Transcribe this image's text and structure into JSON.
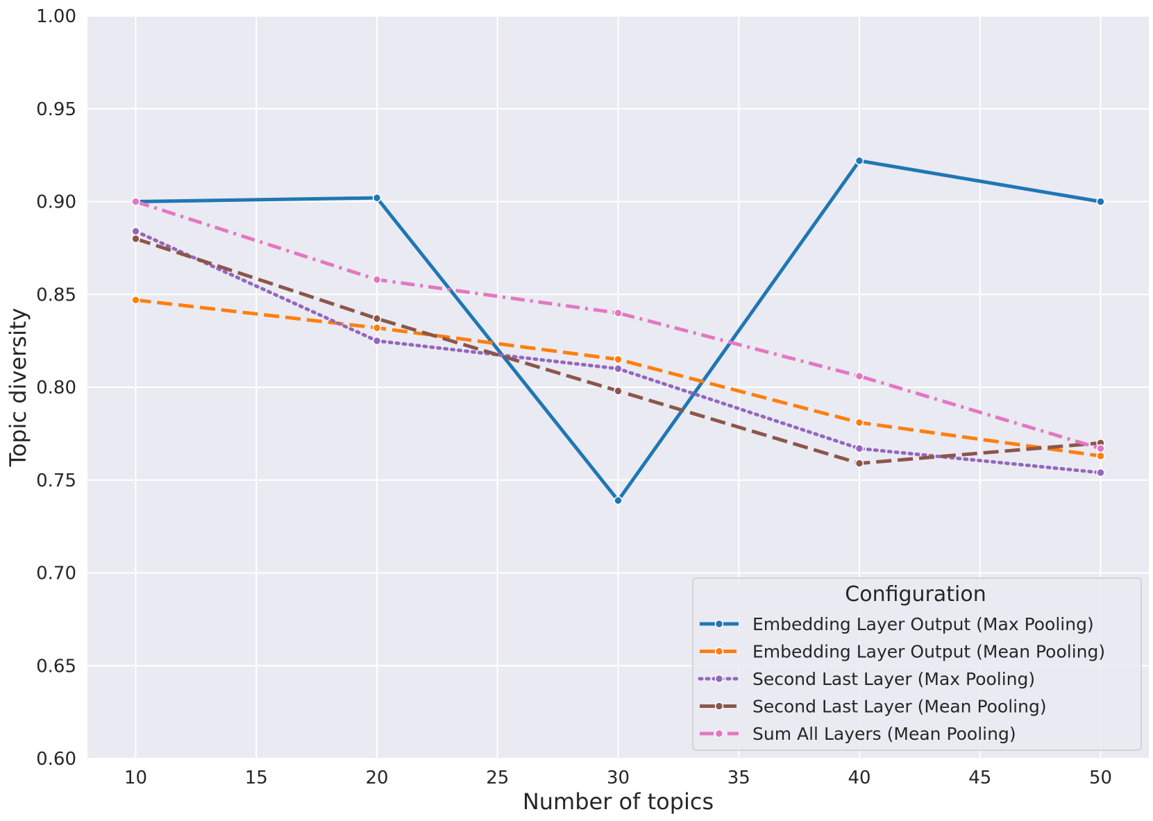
{
  "chart_data": {
    "type": "line",
    "xlabel": "Number of topics",
    "ylabel": "Topic diversity",
    "xlim": [
      8,
      52
    ],
    "ylim": [
      0.6,
      1.0
    ],
    "xticks": [
      "10",
      "15",
      "20",
      "25",
      "30",
      "35",
      "40",
      "45",
      "50"
    ],
    "yticks": [
      "0.60",
      "0.65",
      "0.70",
      "0.75",
      "0.80",
      "0.85",
      "0.90",
      "0.95",
      "1.00"
    ],
    "grid": true,
    "background": "#eaeaf2",
    "legend": {
      "title": "Configuration",
      "placement": "lower-right"
    },
    "x": [
      10,
      20,
      30,
      40,
      50
    ],
    "series": [
      {
        "name": "Embedding Layer Output (Max Pooling)",
        "color": "#1f77b4",
        "dash": "solid",
        "values": [
          0.9,
          0.902,
          0.739,
          0.922,
          0.9
        ]
      },
      {
        "name": "Embedding Layer Output (Mean Pooling)",
        "color": "#ff7f0e",
        "dash": "dashed",
        "values": [
          0.847,
          0.832,
          0.815,
          0.781,
          0.763
        ]
      },
      {
        "name": "Second Last Layer (Max Pooling)",
        "color": "#9467bd",
        "dash": "dotted",
        "values": [
          0.884,
          0.825,
          0.81,
          0.767,
          0.754
        ]
      },
      {
        "name": "Second Last Layer (Mean Pooling)",
        "color": "#8c564b",
        "dash": "dashed",
        "values": [
          0.88,
          0.837,
          0.798,
          0.759,
          0.77
        ]
      },
      {
        "name": "Sum All Layers (Mean Pooling)",
        "color": "#e377c2",
        "dash": "dashdot",
        "values": [
          0.9,
          0.858,
          0.84,
          0.806,
          0.767
        ]
      }
    ]
  }
}
